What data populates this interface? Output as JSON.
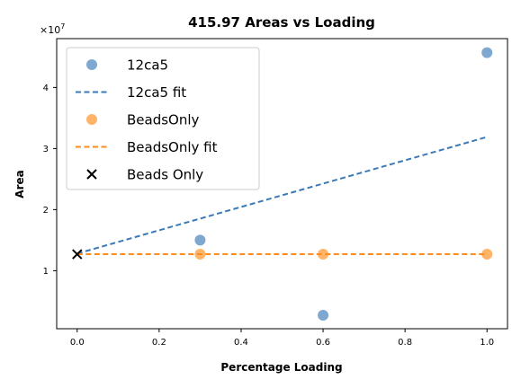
{
  "chart_data": {
    "type": "scatter",
    "title": "415.97 Areas vs Loading",
    "xlabel": "Percentage Loading",
    "ylabel": "Area",
    "y_multiplier_label": "×10",
    "y_multiplier_exp": "7",
    "xlim": [
      -0.05,
      1.05
    ],
    "ylim": [
      0.05,
      4.8
    ],
    "y_units_scale": 10000000,
    "x_ticks": [
      0.0,
      0.2,
      0.4,
      0.6,
      0.8,
      1.0
    ],
    "x_tick_labels": [
      "0.0",
      "0.2",
      "0.4",
      "0.6",
      "0.8",
      "1.0"
    ],
    "y_ticks": [
      1,
      2,
      3,
      4
    ],
    "y_tick_labels": [
      "1",
      "2",
      "3",
      "4"
    ],
    "grid": false,
    "legend_position": "top-left",
    "series": [
      {
        "name": "12ca5",
        "kind": "scatter",
        "marker": "circle",
        "color": "#3a7ab8",
        "x": [
          0.3,
          0.6,
          1.0
        ],
        "y": [
          1.5,
          0.27,
          4.57
        ]
      },
      {
        "name": "12ca5 fit",
        "kind": "line",
        "dash": true,
        "color": "#3a7ab8",
        "x": [
          0.0,
          1.0
        ],
        "y": [
          1.28,
          3.19
        ]
      },
      {
        "name": "BeadsOnly",
        "kind": "scatter",
        "marker": "circle",
        "color": "#ff8c1a",
        "x": [
          0.3,
          0.6,
          1.0
        ],
        "y": [
          1.27,
          1.27,
          1.27
        ]
      },
      {
        "name": "BeadsOnly fit",
        "kind": "line",
        "dash": true,
        "color": "#ff8c1a",
        "x": [
          0.0,
          1.0
        ],
        "y": [
          1.27,
          1.27
        ]
      },
      {
        "name": "Beads Only",
        "kind": "scatter",
        "marker": "x",
        "color": "#000000",
        "x": [
          0.0
        ],
        "y": [
          1.27
        ]
      }
    ]
  }
}
